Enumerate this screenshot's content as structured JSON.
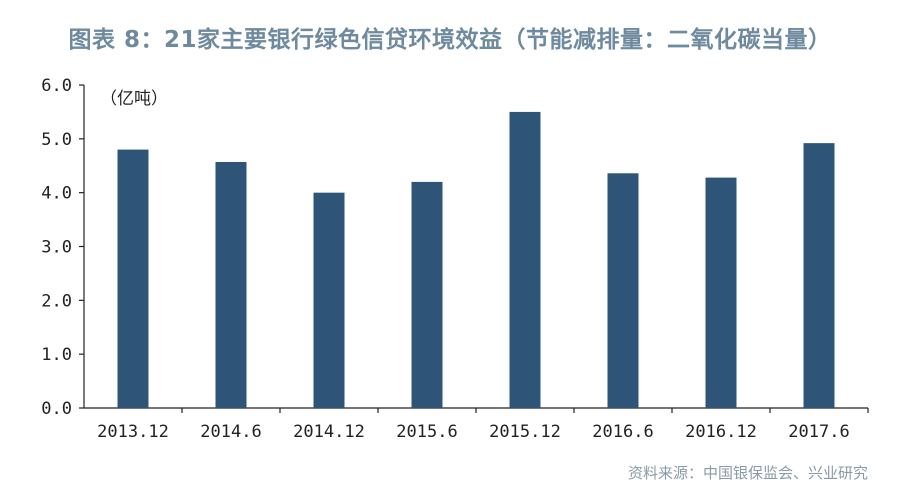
{
  "header": {
    "title": "图表 8：21家主要银行绿色信贷环境效益（节能减排量：二氧化碳当量）"
  },
  "footer": {
    "source": "资料来源：中国银保监会、兴业研究"
  },
  "chart_data": {
    "type": "bar",
    "title": "图表 8：21家主要银行绿色信贷环境效益（节能减排量：二氧化碳当量）",
    "unit_label": "（亿吨）",
    "categories": [
      "2013.12",
      "2014.6",
      "2014.12",
      "2015.6",
      "2015.12",
      "2016.6",
      "2016.12",
      "2017.6"
    ],
    "values": [
      4.8,
      4.57,
      4.0,
      4.2,
      5.5,
      4.36,
      4.28,
      4.92
    ],
    "ylim": [
      0,
      6
    ],
    "yticks": [
      "0.0",
      "1.0",
      "2.0",
      "3.0",
      "4.0",
      "5.0",
      "6.0"
    ],
    "bar_color": "#2e5577",
    "grid": false
  }
}
